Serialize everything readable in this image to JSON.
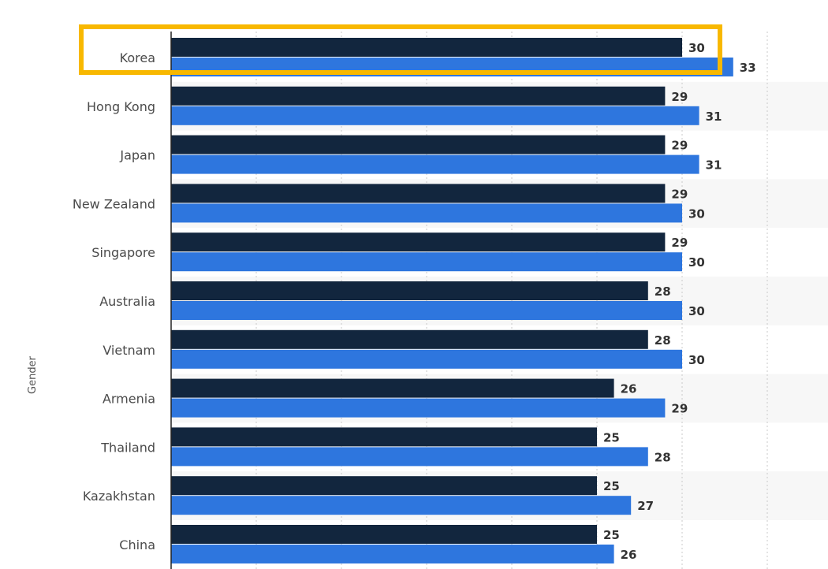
{
  "chart_data": {
    "type": "bar",
    "orientation": "horizontal",
    "categories": [
      "Korea",
      "Hong Kong",
      "Japan",
      "New Zealand",
      "Singapore",
      "Australia",
      "Vietnam",
      "Armenia",
      "Thailand",
      "Kazakhstan",
      "China"
    ],
    "series": [
      {
        "values": [
          30,
          29,
          29,
          29,
          29,
          28,
          28,
          26,
          25,
          25,
          25
        ],
        "color": "#12263e"
      },
      {
        "values": [
          33,
          31,
          31,
          30,
          30,
          30,
          30,
          29,
          28,
          27,
          26
        ],
        "color": "#2e76de"
      }
    ],
    "ylabel": "Gender",
    "xlim": [
      0,
      35
    ],
    "grid": true,
    "legend": "none",
    "highlight": {
      "category": "Korea",
      "color": "#f8b800"
    }
  }
}
